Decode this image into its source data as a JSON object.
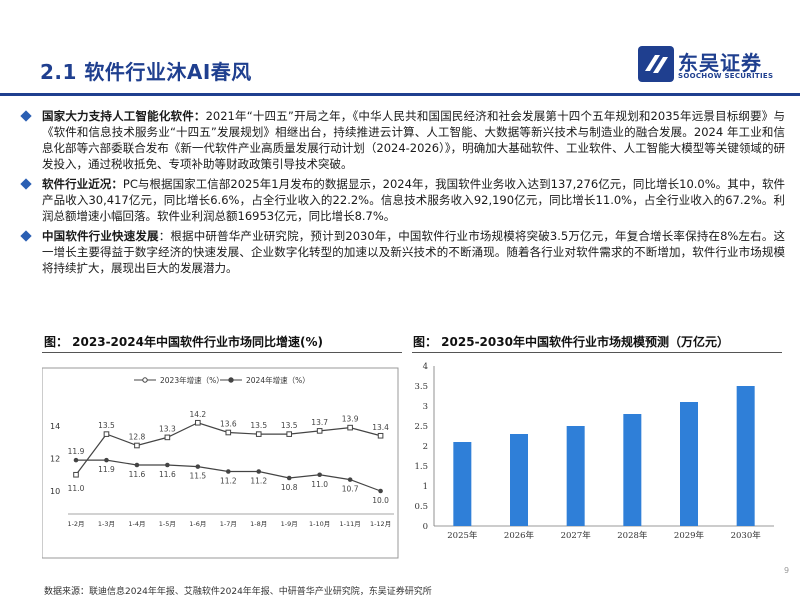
{
  "header": {
    "title": "2.1 软件行业沐AI春风",
    "logo_cn": "东吴证券",
    "logo_en": "SOOCHOW SECURITIES"
  },
  "bullets": [
    {
      "lead": "国家大力支持人工智能化软件：",
      "text": "2021年“十四五”开局之年，《中华人民共和国国民经济和社会发展第十四个五年规划和2035年远景目标纲要》与《软件和信息技术服务业“十四五”发展规划》相继出台，持续推进云计算、人工智能、大数据等新兴技术与制造业的融合发展。2024 年工业和信息化部等六部委联合发布《新一代软件产业高质量发展行动计划（2024-2026）》，明确加大基础软件、工业软件、人工智能大模型等关键领域的研发投入，通过税收抵免、专项补助等财政政策引导技术突破。"
    },
    {
      "lead": "软件行业近况：",
      "text": "PC与根据国家工信部2025年1月发布的数据显示，2024年，我国软件业务收入达到137,276亿元，同比增长10.0%。其中，软件产品收入30,417亿元，同比增长6.6%，占全行业收入的22.2%。信息技术服务收入92,190亿元，同比增长11.0%，占全行业收入的67.2%。利润总额增速小幅回落。软件业利润总额16953亿元，同比增长8.7%。"
    },
    {
      "lead": "中国软件行业快速发展",
      "text": "：根据中研普华产业研究院，预计到2030年，中国软件行业市场规模将突破3.5万亿元，年复合增长率保持在8%左右。这一增长主要得益于数字经济的快速发展、企业数字化转型的加速以及新兴技术的不断涌现。随着各行业对软件需求的不断增加，软件行业市场规模将持续扩大，展现出巨大的发展潜力。"
    }
  ],
  "figures": {
    "fig1_title": "图：  2023-2024年中国软件行业市场同比增速(%)",
    "fig2_title": "图：  2025-2030年中国软件行业市场规模预测（万亿元）"
  },
  "chart_data": [
    {
      "type": "line",
      "categories": [
        "1-2月",
        "1-3月",
        "1-4月",
        "1-5月",
        "1-6月",
        "1-7月",
        "1-8月",
        "1-9月",
        "1-10月",
        "1-11月",
        "1-12月"
      ],
      "series": [
        {
          "name": "2023年增速（%）",
          "values": [
            11.0,
            13.5,
            12.8,
            13.3,
            14.2,
            13.6,
            13.5,
            13.5,
            13.7,
            13.9,
            13.4
          ]
        },
        {
          "name": "2024年增速（%）",
          "values": [
            11.9,
            11.9,
            11.6,
            11.6,
            11.5,
            11.2,
            11.2,
            10.8,
            11.0,
            10.7,
            10.0
          ]
        }
      ],
      "yticks": [
        "10",
        "12",
        "14"
      ],
      "ylim": [
        9.2,
        15.6
      ],
      "legend": "top"
    },
    {
      "type": "bar",
      "categories": [
        "2025年",
        "2026年",
        "2027年",
        "2028年",
        "2029年",
        "2030年"
      ],
      "values": [
        2.1,
        2.3,
        2.5,
        2.8,
        3.1,
        3.5
      ],
      "yticks": [
        "0",
        "0.5",
        "1",
        "1.5",
        "2",
        "2.5",
        "3",
        "3.5",
        "4"
      ],
      "ylim": [
        0,
        4
      ],
      "color": "#2f7fd8"
    }
  ],
  "footer": {
    "source": "数据来源：联迪信息2024年年报、艾融软件2024年年报、中研普华产业研究院，东吴证券研究所",
    "page": "9"
  },
  "colors": {
    "brand": "#1f3f8f",
    "bullet": "#2b5fb3",
    "bar": "#2f7fd8",
    "line": "#444444"
  }
}
